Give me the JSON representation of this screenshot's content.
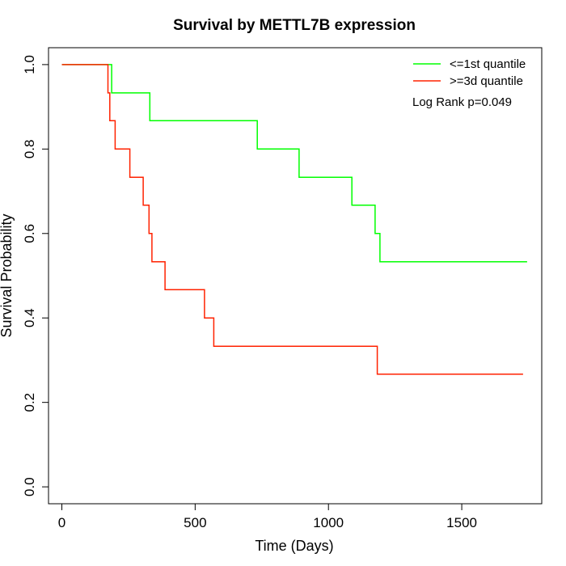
{
  "chart_data": {
    "type": "line",
    "title": "Survival by METTL7B expression",
    "xlabel": "Time (Days)",
    "ylabel": "Survival Probability",
    "xlim": [
      -50,
      1800
    ],
    "ylim": [
      -0.04,
      1.04
    ],
    "x_ticks": [
      0,
      500,
      1000,
      1500
    ],
    "x_tick_labels": [
      "0",
      "500",
      "1000",
      "1500"
    ],
    "y_ticks": [
      0.0,
      0.2,
      0.4,
      0.6,
      0.8,
      1.0
    ],
    "y_tick_labels": [
      "0.0",
      "0.2",
      "0.4",
      "0.6",
      "0.8",
      "1.0"
    ],
    "grid": false,
    "legend_position": "top-right",
    "annotation": "Log Rank p=0.049",
    "series": [
      {
        "name": "<=1st quantile",
        "color": "#00ff00",
        "step": true,
        "x": [
          0,
          187,
          187,
          330,
          330,
          733,
          733,
          890,
          890,
          1088,
          1088,
          1175,
          1175,
          1193,
          1193,
          1745
        ],
        "y": [
          1.0,
          1.0,
          0.933,
          0.933,
          0.867,
          0.867,
          0.8,
          0.8,
          0.733,
          0.733,
          0.667,
          0.667,
          0.6,
          0.6,
          0.533,
          0.533
        ]
      },
      {
        "name": ">=3d quantile",
        "color": "#ff2200",
        "step": true,
        "x": [
          0,
          173,
          173,
          180,
          180,
          200,
          200,
          255,
          255,
          305,
          305,
          327,
          327,
          338,
          338,
          387,
          387,
          535,
          535,
          570,
          570,
          1183,
          1183,
          1730
        ],
        "y": [
          1.0,
          1.0,
          0.933,
          0.933,
          0.867,
          0.867,
          0.8,
          0.8,
          0.733,
          0.733,
          0.667,
          0.667,
          0.6,
          0.6,
          0.533,
          0.533,
          0.467,
          0.467,
          0.4,
          0.4,
          0.333,
          0.333,
          0.267,
          0.267
        ]
      }
    ]
  }
}
